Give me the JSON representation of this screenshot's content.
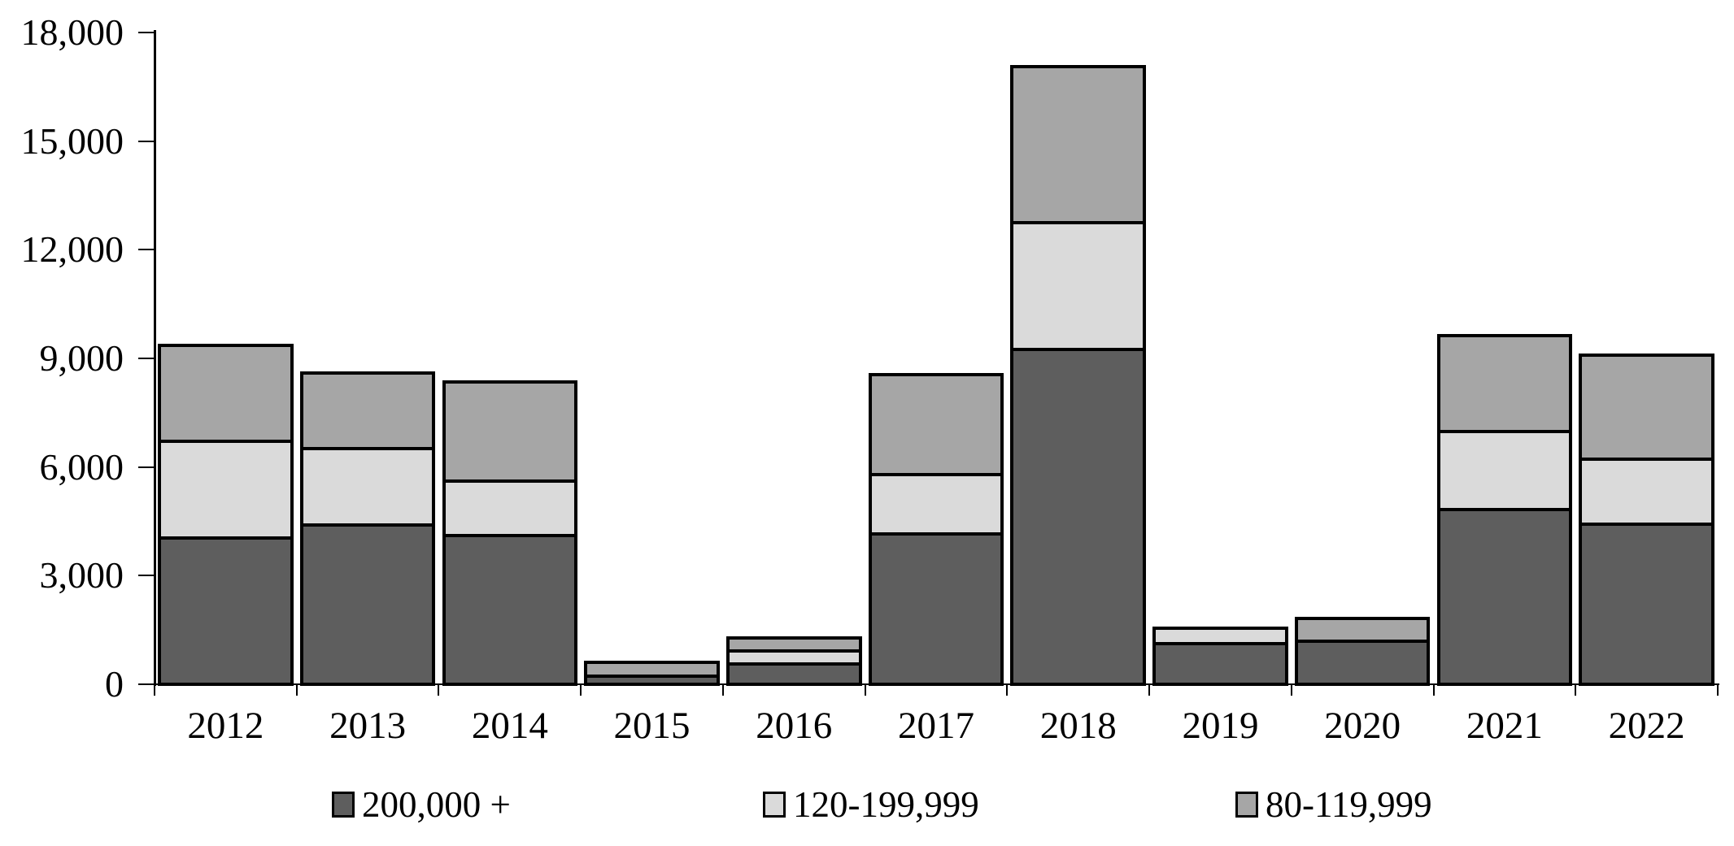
{
  "chart_data": {
    "type": "bar",
    "stacked": true,
    "categories": [
      "2012",
      "2013",
      "2014",
      "2015",
      "2016",
      "2017",
      "2018",
      "2019",
      "2020",
      "2021",
      "2022"
    ],
    "series": [
      {
        "name": "200,000 +",
        "color": "#5e5e5e",
        "values": [
          4050,
          4400,
          4100,
          230,
          560,
          4150,
          9250,
          1125,
          1180,
          4825,
          4425
        ]
      },
      {
        "name": "120-199,999",
        "color": "#dadada",
        "values": [
          2650,
          2100,
          1500,
          0,
          360,
          1650,
          3500,
          415,
          0,
          2150,
          1800
        ]
      },
      {
        "name": "80-119,999",
        "color": "#a6a6a6",
        "values": [
          2650,
          2100,
          2750,
          370,
          360,
          2750,
          4300,
          0,
          640,
          2650,
          2875
        ]
      }
    ],
    "totals": [
      9350,
      8600,
      8350,
      600,
      1280,
      8550,
      17050,
      1540,
      1820,
      9625,
      9100
    ],
    "ylim": [
      0,
      18000
    ],
    "ytick_step": 3000,
    "ytick_labels": [
      "0",
      "3,000",
      "6,000",
      "9,000",
      "12,000",
      "15,000",
      "18,000"
    ],
    "grid": false,
    "legend_position": "bottom",
    "bar_border_color": "#000000",
    "axis_color": "#000000",
    "background_color": "#ffffff"
  }
}
